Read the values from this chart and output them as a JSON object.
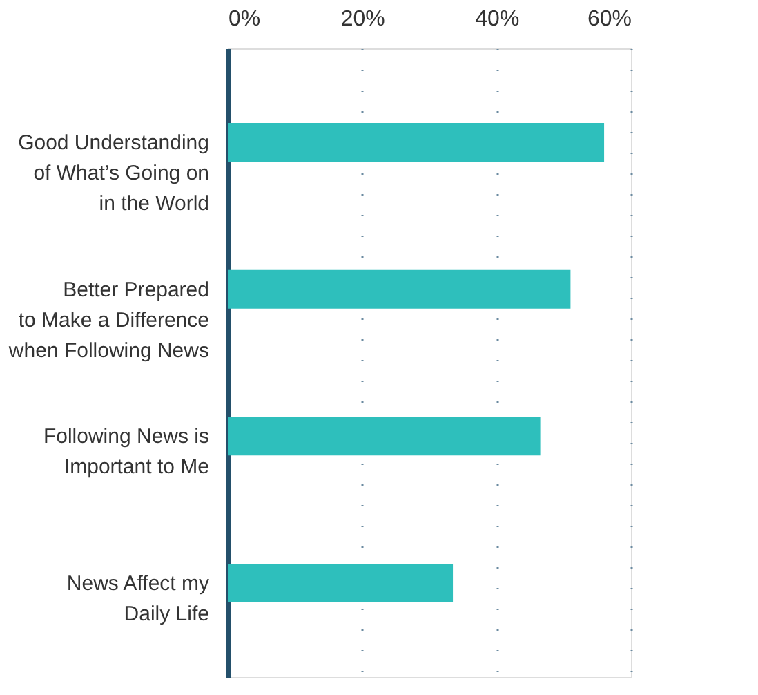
{
  "chart_data": {
    "type": "bar",
    "orientation": "horizontal",
    "categories": [
      "Good Understanding\nof What’s Going on\nin the World",
      "Better Prepared\nto Make a Difference\nwhen Following News",
      "Following News is\nImportant to Me",
      "News Affect my\nDaily Life"
    ],
    "values": [
      56,
      51,
      46.5,
      33.5
    ],
    "color": "#2ebfbc",
    "xlim": [
      0,
      60
    ],
    "xticks": [
      {
        "value": 0,
        "label": "0%"
      },
      {
        "value": 20,
        "label": "20%"
      },
      {
        "value": 40,
        "label": "40%"
      },
      {
        "value": 60,
        "label": "60%"
      }
    ],
    "grid": "x"
  }
}
